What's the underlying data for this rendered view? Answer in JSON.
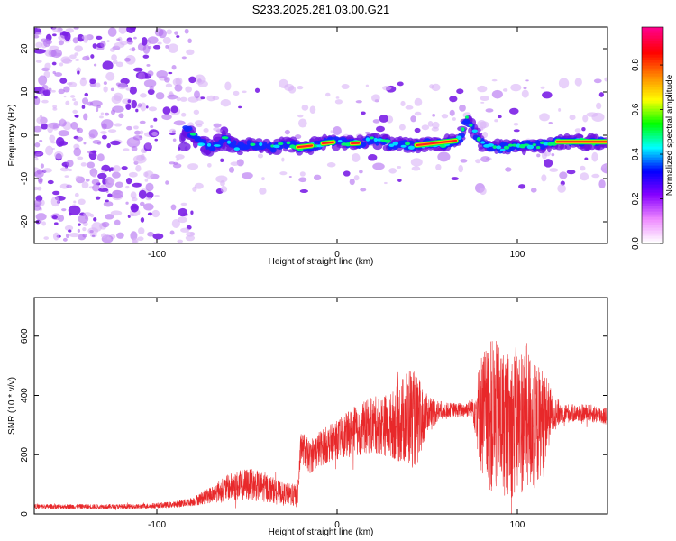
{
  "title": "S233.2025.281.03.00.G21",
  "chart_data": [
    {
      "type": "heatmap",
      "name": "spectrogram",
      "xlabel": "Height of straight line (km)",
      "ylabel": "Frequency (Hz)",
      "xlim": [
        -168,
        150
      ],
      "ylim": [
        -25,
        25
      ],
      "xticks": [
        -100,
        0,
        100
      ],
      "yticks": [
        -20,
        -10,
        0,
        10,
        20
      ],
      "ridge": [
        {
          "x": -84,
          "y": 2
        },
        {
          "x": -78,
          "y": -1
        },
        {
          "x": -70,
          "y": -3
        },
        {
          "x": -62,
          "y": -1
        },
        {
          "x": -55,
          "y": -3
        },
        {
          "x": -45,
          "y": -2
        },
        {
          "x": -38,
          "y": -3
        },
        {
          "x": -28,
          "y": -2
        },
        {
          "x": -20,
          "y": -3
        },
        {
          "x": -10,
          "y": -2
        },
        {
          "x": 0,
          "y": -1.5
        },
        {
          "x": 10,
          "y": -2
        },
        {
          "x": 20,
          "y": -1
        },
        {
          "x": 30,
          "y": -2
        },
        {
          "x": 40,
          "y": -2.5
        },
        {
          "x": 50,
          "y": -2
        },
        {
          "x": 60,
          "y": -2
        },
        {
          "x": 68,
          "y": -1
        },
        {
          "x": 72,
          "y": 4
        },
        {
          "x": 80,
          "y": -2
        },
        {
          "x": 90,
          "y": -3
        },
        {
          "x": 100,
          "y": -2.5
        },
        {
          "x": 110,
          "y": -2.5
        },
        {
          "x": 120,
          "y": -1.5
        },
        {
          "x": 130,
          "y": -1.5
        },
        {
          "x": 150,
          "y": -1.5
        }
      ],
      "colorbar": {
        "label": "Normalized spectral amplitude",
        "range": [
          0,
          0.97
        ],
        "ticks": [
          0.0,
          0.2,
          0.4,
          0.6,
          0.8
        ],
        "tick_labels": [
          "0.0",
          "0.2",
          "0.4",
          "0.6",
          "0.8"
        ],
        "colors": [
          "#ffffff",
          "#ee88ff",
          "#8800ff",
          "#0000ff",
          "#00ffff",
          "#00ff00",
          "#ffff00",
          "#ff8800",
          "#ff0000",
          "#ff0088"
        ]
      }
    },
    {
      "type": "line",
      "name": "snr",
      "xlabel": "Height of straight line (km)",
      "ylabel": "SNR (10 * v/v)",
      "xlim": [
        -168,
        150
      ],
      "ylim": [
        0,
        730
      ],
      "xticks": [
        -100,
        0,
        100
      ],
      "yticks": [
        0,
        200,
        400,
        600
      ],
      "line_color": "#e8282a",
      "envelope": {
        "x": [
          -168,
          -110,
          -90,
          -80,
          -70,
          -60,
          -50,
          -40,
          -30,
          -22,
          -20,
          -15,
          -10,
          0,
          10,
          20,
          30,
          35,
          40,
          45,
          50,
          60,
          70,
          75,
          80,
          85,
          90,
          95,
          100,
          105,
          110,
          115,
          120,
          125,
          130,
          140,
          150
        ],
        "center": [
          25,
          25,
          32,
          42,
          65,
          90,
          100,
          90,
          70,
          60,
          230,
          190,
          220,
          250,
          280,
          300,
          300,
          310,
          330,
          310,
          340,
          350,
          350,
          360,
          340,
          330,
          320,
          300,
          310,
          330,
          290,
          330,
          340,
          340,
          340,
          340,
          330
        ],
        "spread": [
          8,
          8,
          10,
          15,
          28,
          45,
          55,
          50,
          35,
          40,
          55,
          55,
          60,
          65,
          85,
          95,
          110,
          140,
          175,
          150,
          60,
          25,
          25,
          30,
          210,
          260,
          260,
          240,
          260,
          250,
          220,
          160,
          60,
          35,
          30,
          30,
          30
        ]
      }
    }
  ]
}
